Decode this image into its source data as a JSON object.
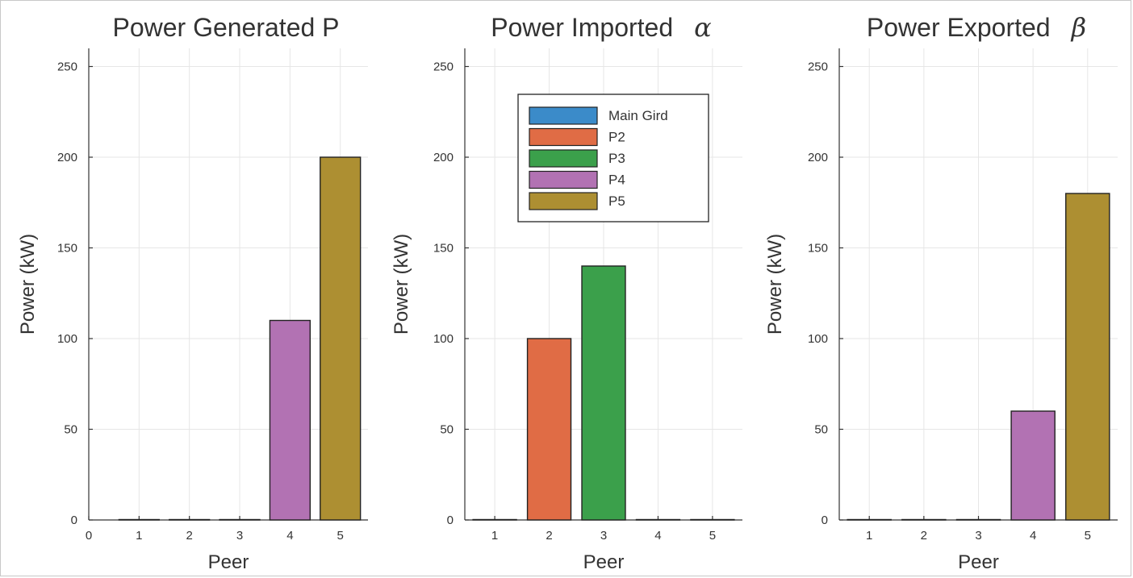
{
  "chart_data": [
    {
      "type": "bar",
      "title": "Power Generated P",
      "title_symbol": "",
      "xlabel": "Peer",
      "ylabel": "Power (kW)",
      "x_ticks": [
        0,
        1,
        2,
        3,
        4,
        5
      ],
      "xlim": [
        0,
        5.55
      ],
      "y_ticks": [
        0,
        50,
        100,
        150,
        200,
        250
      ],
      "ylim": [
        0,
        260
      ],
      "grid": true,
      "bars": [
        {
          "x": 1,
          "value": 0,
          "series": "Main Gird"
        },
        {
          "x": 2,
          "value": 0,
          "series": "P2"
        },
        {
          "x": 3,
          "value": 0,
          "series": "P3"
        },
        {
          "x": 4,
          "value": 110,
          "series": "P4"
        },
        {
          "x": 5,
          "value": 200,
          "series": "P5"
        }
      ]
    },
    {
      "type": "bar",
      "title": "Power Imported",
      "title_symbol": "α",
      "xlabel": "Peer",
      "ylabel": "Power (kW)",
      "x_ticks": [
        1,
        2,
        3,
        4,
        5
      ],
      "xlim": [
        0.45,
        5.55
      ],
      "y_ticks": [
        0,
        50,
        100,
        150,
        200,
        250
      ],
      "ylim": [
        0,
        260
      ],
      "grid": true,
      "bars": [
        {
          "x": 1,
          "value": 0,
          "series": "Main Gird"
        },
        {
          "x": 2,
          "value": 100,
          "series": "P2"
        },
        {
          "x": 3,
          "value": 140,
          "series": "P3"
        },
        {
          "x": 4,
          "value": 0,
          "series": "P4"
        },
        {
          "x": 5,
          "value": 0,
          "series": "P5"
        }
      ],
      "legend": {
        "placement": "top-right",
        "entries": [
          {
            "name": "Main Gird",
            "color": "#3b8bc9"
          },
          {
            "name": "P2",
            "color": "#e06c45"
          },
          {
            "name": "P3",
            "color": "#3ba04b"
          },
          {
            "name": "P4",
            "color": "#b272b3"
          },
          {
            "name": "P5",
            "color": "#ad8f32"
          }
        ]
      }
    },
    {
      "type": "bar",
      "title": "Power Exported",
      "title_symbol": "β",
      "xlabel": "Peer",
      "ylabel": "Power (kW)",
      "x_ticks": [
        1,
        2,
        3,
        4,
        5
      ],
      "xlim": [
        0.45,
        5.55
      ],
      "y_ticks": [
        0,
        50,
        100,
        150,
        200,
        250
      ],
      "ylim": [
        0,
        260
      ],
      "grid": true,
      "bars": [
        {
          "x": 1,
          "value": 0,
          "series": "Main Gird"
        },
        {
          "x": 2,
          "value": 0,
          "series": "P2"
        },
        {
          "x": 3,
          "value": 0,
          "series": "P3"
        },
        {
          "x": 4,
          "value": 60,
          "series": "P4"
        },
        {
          "x": 5,
          "value": 180,
          "series": "P5"
        }
      ]
    }
  ],
  "series_colors": {
    "Main Gird": "#3b8bc9",
    "P2": "#e06c45",
    "P3": "#3ba04b",
    "P4": "#b272b3",
    "P5": "#ad8f32"
  }
}
